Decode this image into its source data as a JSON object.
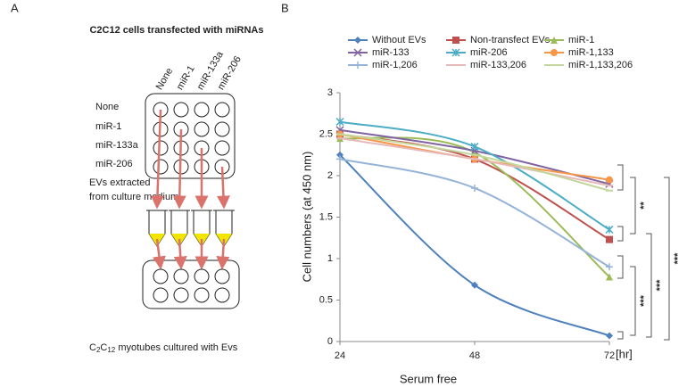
{
  "panel_a": {
    "label": "A",
    "title": "C2C12 cells transfected with miRNAs",
    "columns": [
      "None",
      "miR-1",
      "miR-133a",
      "miR-206"
    ],
    "rows": [
      "None",
      "miR-1",
      "miR-133a",
      "miR-206"
    ],
    "extract_lines": [
      "EVs extracted",
      "from culture medium"
    ],
    "caption_parts": [
      "C",
      "2",
      "C",
      "12",
      " myotubes  cultured with Evs"
    ]
  },
  "chart_data": {
    "type": "line",
    "panel_label": "B",
    "x_label": "Serum free",
    "y_label": "Cell numbers  (at 450 nm)",
    "x_unit": "[hr]",
    "x": [
      24,
      48,
      72
    ],
    "xlim": [
      24,
      72
    ],
    "xticks": [
      24,
      48,
      72
    ],
    "ylim": [
      0,
      3
    ],
    "yticks": [
      0,
      0.5,
      1,
      1.5,
      2,
      2.5,
      3
    ],
    "smooth": true,
    "series": [
      {
        "name": "Without EVs",
        "color": "#4f81bd",
        "marker": "diamond",
        "values": [
          2.25,
          0.68,
          0.07
        ]
      },
      {
        "name": "Non-transfect EVs",
        "color": "#c0504d",
        "marker": "square",
        "values": [
          2.5,
          2.2,
          1.23
        ]
      },
      {
        "name": "miR-1",
        "color": "#9bbb59",
        "marker": "triangle",
        "values": [
          2.45,
          2.28,
          0.78
        ]
      },
      {
        "name": "miR-133",
        "color": "#8064a2",
        "marker": "x",
        "values": [
          2.55,
          2.3,
          1.9
        ]
      },
      {
        "name": "miR-206",
        "color": "#4bacc6",
        "marker": "star",
        "values": [
          2.65,
          2.35,
          1.35
        ]
      },
      {
        "name": "miR-1,133",
        "color": "#f79646",
        "marker": "circle",
        "values": [
          2.5,
          2.2,
          1.95
        ]
      },
      {
        "name": "miR-1,206",
        "color": "#95b3d7",
        "marker": "plus",
        "values": [
          2.2,
          1.85,
          0.9
        ]
      },
      {
        "name": "miR-133,206",
        "color": "#e6b9b8",
        "marker": "dash",
        "values": [
          2.45,
          2.2,
          1.88
        ]
      },
      {
        "name": "miR-1,133,206",
        "color": "#c3d69b",
        "marker": "dash",
        "values": [
          2.5,
          2.25,
          1.82
        ]
      }
    ],
    "significance": [
      "**",
      "***",
      "***",
      "***"
    ]
  }
}
